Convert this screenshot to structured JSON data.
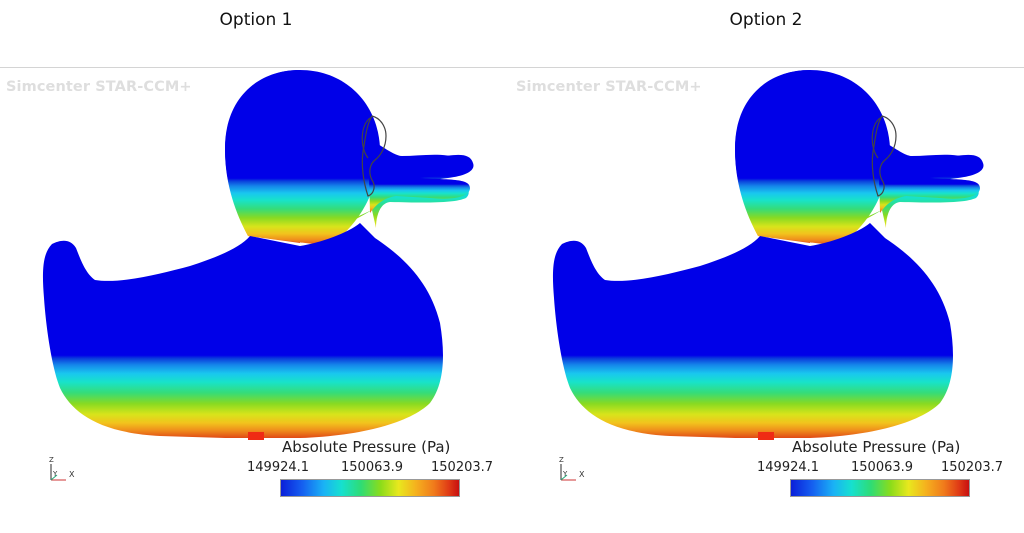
{
  "options": [
    {
      "title": "Option 1",
      "watermark": "Simcenter STAR-CCM+",
      "legend": {
        "title": "Absolute Pressure (Pa)",
        "ticks": [
          "149924.1",
          "150063.9",
          "150203.7"
        ]
      },
      "axes": {
        "z": "Z",
        "y": "Y",
        "x": "X"
      }
    },
    {
      "title": "Option 2",
      "watermark": "Simcenter STAR-CCM+",
      "legend": {
        "title": "Absolute Pressure (Pa)",
        "ticks": [
          "149924.1",
          "150063.9",
          "150203.7"
        ]
      },
      "axes": {
        "z": "Z",
        "y": "Y",
        "x": "X"
      }
    }
  ],
  "colors": {
    "duck_fill": "#0000e8",
    "colormap": [
      "#0b1fd9",
      "#1560f0",
      "#1ab2f5",
      "#16e0cf",
      "#2fdc74",
      "#8cdc1a",
      "#e8e81e",
      "#f5b01e",
      "#f07a1b",
      "#e03d16",
      "#c80f10"
    ],
    "watermark": "#dedede"
  }
}
